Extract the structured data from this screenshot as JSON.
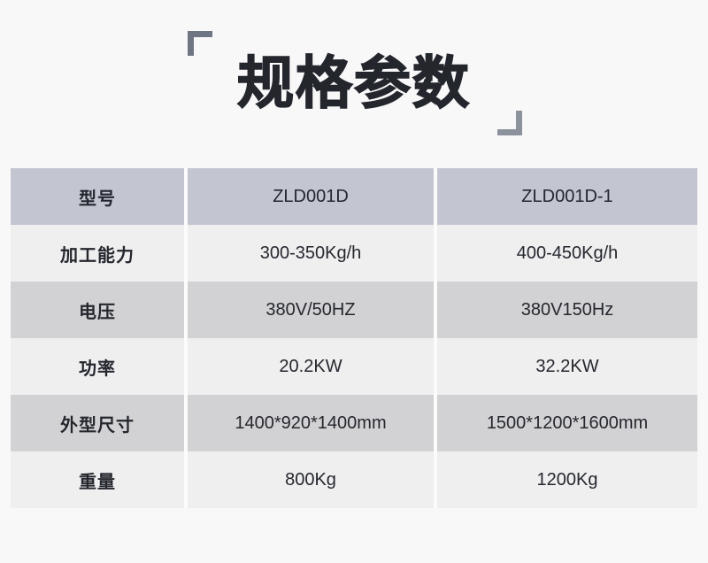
{
  "page": {
    "title": "规格参数"
  },
  "theme": {
    "page_bg": "#f8f8f9",
    "header_row_bg": "#c3c5d1",
    "gray_row_bg": "#d2d2d4",
    "light_row_bg": "#efeff0",
    "divider_color": "#fbfbfc",
    "text_color": "#25272e",
    "bracket_top_color": "#6e7583",
    "bracket_bottom_color": "#8c929c"
  },
  "table": {
    "rows": [
      {
        "label": "型号",
        "values": [
          "ZLD001D",
          "ZLD001D-1"
        ]
      },
      {
        "label": "加工能力",
        "values": [
          "300-350Kg/h",
          "400-450Kg/h"
        ]
      },
      {
        "label": "电压",
        "values": [
          "380V/50HZ",
          "380V150Hz"
        ]
      },
      {
        "label": "功率",
        "values": [
          "20.2KW",
          "32.2KW"
        ]
      },
      {
        "label": "外型尺寸",
        "values": [
          "1400*920*1400mm",
          "1500*1200*1600mm"
        ]
      },
      {
        "label": "重量",
        "values": [
          "800Kg",
          "1200Kg"
        ]
      }
    ]
  }
}
